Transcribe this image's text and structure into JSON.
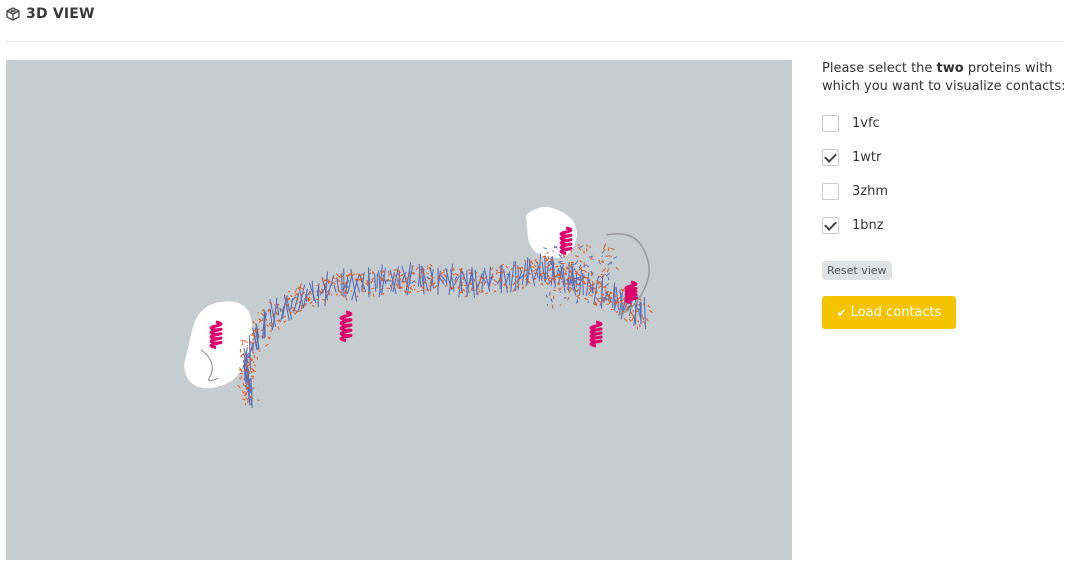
{
  "header": {
    "title": "3D VIEW",
    "icon": "cube-icon"
  },
  "panel": {
    "instruction_before": "Please select the ",
    "instruction_bold": "two",
    "instruction_after": " proteins with which you want to visualize contacts:",
    "options": [
      {
        "label": "1vfc",
        "checked": false
      },
      {
        "label": "1wtr",
        "checked": true
      },
      {
        "label": "3zhm",
        "checked": false
      },
      {
        "label": "1bnz",
        "checked": true
      }
    ],
    "reset_label": "Reset view",
    "load_label": "Load contacts",
    "load_color": "#f5c400"
  },
  "viewer": {
    "background": "#c5cdd1",
    "colors": {
      "helix": "#e0006c",
      "dna_orange": "#e25a1c",
      "dna_blue": "#5a6fb8",
      "surface": "#ffffff"
    }
  }
}
